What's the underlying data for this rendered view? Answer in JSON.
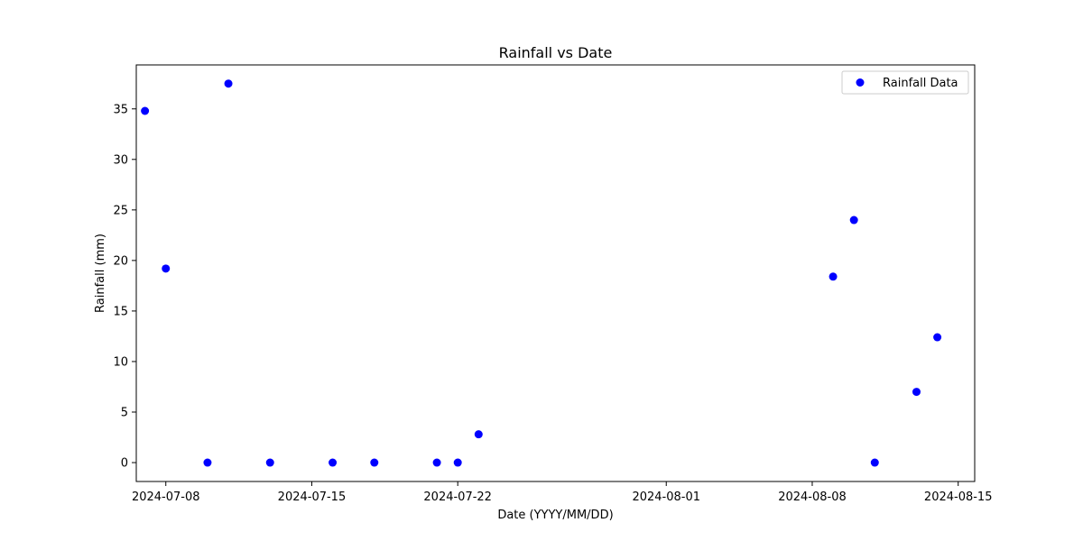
{
  "chart_data": {
    "type": "scatter",
    "title": "Rainfall vs Date",
    "xlabel": "Date (YYYY/MM/DD)",
    "ylabel": "Rainfall (mm)",
    "xlim": [
      "2024-07-06 14:00",
      "2024-08-15 19:00"
    ],
    "ylim": [
      -1.87,
      39.35
    ],
    "x_ticks": [
      "2024-07-08",
      "2024-07-15",
      "2024-07-22",
      "2024-08-01",
      "2024-08-08",
      "2024-08-15"
    ],
    "y_ticks": [
      0,
      5,
      10,
      15,
      20,
      25,
      30,
      35
    ],
    "grid": false,
    "legend": {
      "position": "top-right",
      "entries": [
        "Rainfall Data"
      ]
    },
    "colors": {
      "series": "#0000ff"
    },
    "series": [
      {
        "name": "Rainfall Data",
        "x": [
          "2024-07-07",
          "2024-07-08",
          "2024-07-10",
          "2024-07-11",
          "2024-07-13",
          "2024-07-16",
          "2024-07-18",
          "2024-07-21",
          "2024-07-22",
          "2024-07-23",
          "2024-08-09",
          "2024-08-10",
          "2024-08-11",
          "2024-08-13",
          "2024-08-14"
        ],
        "y": [
          34.8,
          19.2,
          0,
          37.5,
          0,
          0,
          0,
          0,
          0,
          2.8,
          18.4,
          24.0,
          0,
          7.0,
          12.4
        ]
      }
    ]
  }
}
